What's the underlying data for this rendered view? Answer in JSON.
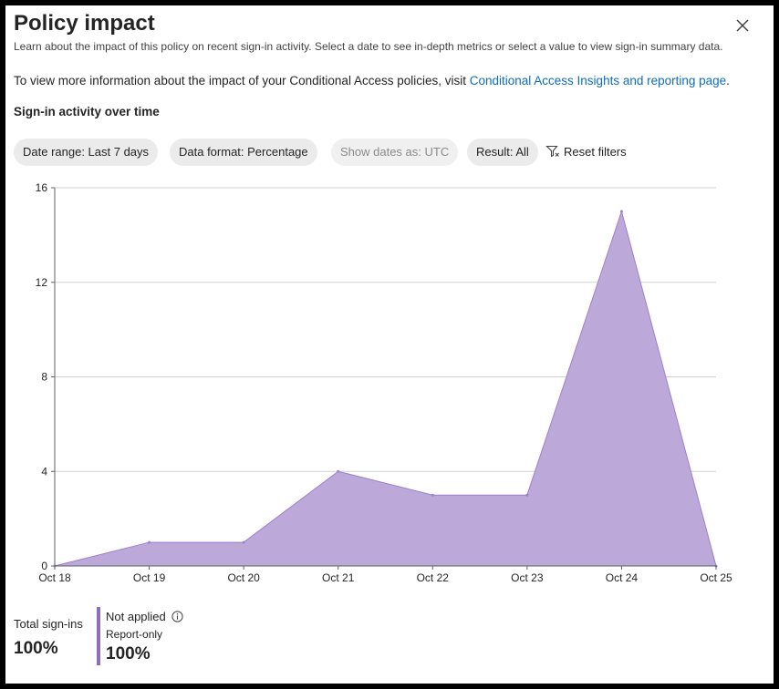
{
  "header": {
    "title": "Policy impact",
    "subtitle": "Learn about the impact of this policy on recent sign-in activity. Select a date to see in-depth metrics or select a value to view sign-in summary data.",
    "close_icon": "close-icon"
  },
  "info": {
    "text": "To view more information about the impact of your Conditional Access policies, visit ",
    "link": "Conditional Access Insights and reporting page",
    "suffix": "."
  },
  "section_title": "Sign-in activity over time",
  "filters": {
    "date_range": "Date range: Last 7 days",
    "data_format": "Data format: Percentage",
    "show_dates": "Show dates as: UTC",
    "result": "Result: All",
    "reset": "Reset filters",
    "reset_icon": "filter-reset-icon"
  },
  "chart_data": {
    "type": "area",
    "categories": [
      "Oct 18",
      "Oct 19",
      "Oct 20",
      "Oct 21",
      "Oct 22",
      "Oct 23",
      "Oct 24",
      "Oct 25"
    ],
    "series": [
      {
        "values": [
          0,
          1,
          1,
          4,
          3,
          3,
          15,
          0
        ],
        "color": "#bca9da"
      }
    ],
    "ylim": [
      0,
      16
    ],
    "yticks": [
      0,
      4,
      8,
      12,
      16
    ],
    "grid": true
  },
  "summary": {
    "total_label": "Total sign-ins",
    "total_value": "100%",
    "legend_name": "Not applied",
    "legend_icon": "info-icon",
    "legend_sub": "Report-only",
    "legend_value": "100%",
    "legend_color": "#8e6dbf"
  }
}
